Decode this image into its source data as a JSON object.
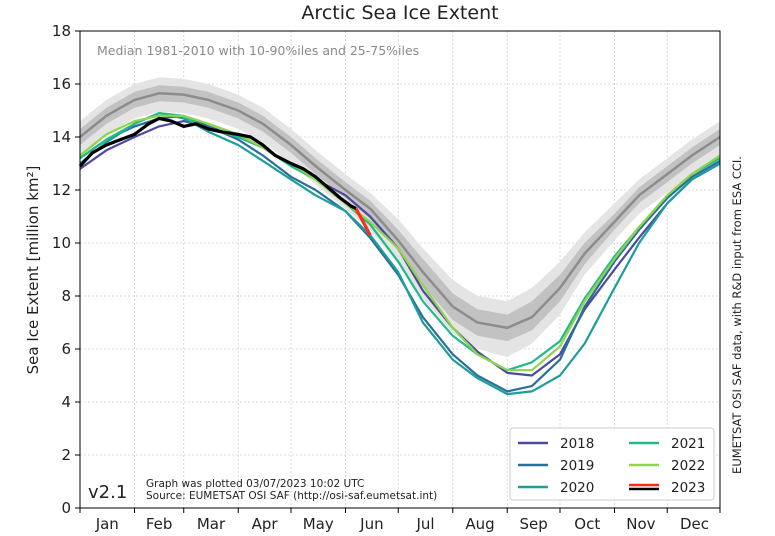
{
  "chart_data": {
    "type": "line",
    "title": "Arctic Sea Ice Extent",
    "subtitle": "Median 1981-2010 with 10-90%iles and 25-75%iles",
    "ylabel": "Sea Ice Extent [million km²]",
    "xlabel": "",
    "ylim": [
      0,
      18
    ],
    "yticks": [
      0,
      2,
      4,
      6,
      8,
      10,
      12,
      14,
      16,
      18
    ],
    "x_unit": "day of year",
    "xlim": [
      1,
      365
    ],
    "months": [
      "Jan",
      "Feb",
      "Mar",
      "Apr",
      "May",
      "Jun",
      "Jul",
      "Aug",
      "Sep",
      "Oct",
      "Nov",
      "Dec"
    ],
    "grid": true,
    "legend_position": "lower-right",
    "version": "v2.1",
    "footnote_lines": [
      "Graph was plotted 03/07/2023 10:02 UTC",
      "Source: EUMETSAT OSI SAF (http://osi-saf.eumetsat.int)"
    ],
    "side_note": "EUMETSAT OSI SAF data, with R&D input from ESA CCI.",
    "median": {
      "x": [
        1,
        16,
        32,
        46,
        60,
        74,
        91,
        105,
        121,
        135,
        152,
        166,
        182,
        196,
        213,
        227,
        244,
        258,
        274,
        288,
        305,
        319,
        335,
        349,
        365
      ],
      "values": [
        14.0,
        14.8,
        15.4,
        15.65,
        15.6,
        15.4,
        15.0,
        14.5,
        13.7,
        12.9,
        12.0,
        11.3,
        10.1,
        8.9,
        7.6,
        7.0,
        6.8,
        7.2,
        8.3,
        9.6,
        10.8,
        11.8,
        12.6,
        13.3,
        14.0
      ],
      "p25": [
        13.7,
        14.5,
        15.1,
        15.35,
        15.3,
        15.1,
        14.7,
        14.2,
        13.4,
        12.6,
        11.7,
        10.9,
        9.7,
        8.4,
        7.1,
        6.5,
        6.3,
        6.7,
        7.8,
        9.2,
        10.5,
        11.5,
        12.3,
        13.0,
        13.7
      ],
      "p75": [
        14.3,
        15.1,
        15.7,
        15.95,
        15.9,
        15.7,
        15.3,
        14.8,
        14.0,
        13.2,
        12.3,
        11.6,
        10.5,
        9.4,
        8.1,
        7.5,
        7.3,
        7.8,
        8.8,
        10.0,
        11.1,
        12.1,
        12.9,
        13.6,
        14.3
      ],
      "p10": [
        13.3,
        14.1,
        14.7,
        14.95,
        14.9,
        14.7,
        14.3,
        13.8,
        13.0,
        12.2,
        11.3,
        10.5,
        9.2,
        7.9,
        6.6,
        6.0,
        5.7,
        6.2,
        7.3,
        8.8,
        10.1,
        11.1,
        11.9,
        12.6,
        13.3
      ],
      "p90": [
        14.6,
        15.4,
        16.0,
        16.25,
        16.2,
        16.0,
        15.6,
        15.1,
        14.3,
        13.5,
        12.6,
        11.9,
        10.9,
        9.8,
        8.6,
        8.0,
        7.8,
        8.3,
        9.3,
        10.4,
        11.5,
        12.4,
        13.2,
        13.9,
        14.6
      ]
    },
    "series": [
      {
        "name": "2018",
        "color": "#4b4aa0",
        "x": [
          1,
          16,
          32,
          46,
          60,
          74,
          91,
          105,
          121,
          135,
          152,
          166,
          182,
          196,
          213,
          227,
          244,
          258,
          274,
          288,
          305,
          319,
          335,
          349,
          365
        ],
        "values": [
          12.8,
          13.5,
          14.0,
          14.4,
          14.6,
          14.4,
          14.0,
          13.6,
          13.0,
          12.4,
          11.8,
          11.0,
          9.8,
          8.2,
          6.8,
          5.9,
          5.1,
          5.0,
          5.8,
          7.5,
          9.0,
          10.2,
          11.5,
          12.4,
          13.0
        ]
      },
      {
        "name": "2019",
        "color": "#2a6f9b",
        "x": [
          1,
          16,
          32,
          46,
          60,
          74,
          91,
          105,
          121,
          135,
          152,
          166,
          182,
          196,
          213,
          227,
          244,
          258,
          274,
          288,
          305,
          319,
          335,
          349,
          365
        ],
        "values": [
          13.2,
          13.9,
          14.4,
          14.7,
          14.8,
          14.4,
          13.9,
          13.3,
          12.5,
          12.0,
          11.2,
          10.2,
          8.8,
          7.2,
          5.8,
          5.0,
          4.4,
          4.6,
          5.6,
          7.6,
          9.3,
          10.5,
          11.7,
          12.5,
          13.1
        ]
      },
      {
        "name": "2020",
        "color": "#1e9e9a",
        "x": [
          1,
          16,
          32,
          46,
          60,
          74,
          91,
          105,
          121,
          135,
          152,
          166,
          182,
          196,
          213,
          227,
          244,
          258,
          274,
          288,
          305,
          319,
          335,
          349,
          365
        ],
        "values": [
          13.0,
          13.8,
          14.5,
          14.9,
          14.7,
          14.2,
          13.7,
          13.1,
          12.4,
          11.8,
          11.2,
          10.3,
          8.9,
          7.0,
          5.6,
          4.9,
          4.3,
          4.4,
          5.0,
          6.2,
          8.3,
          10.0,
          11.5,
          12.4,
          13.0
        ]
      },
      {
        "name": "2021",
        "color": "#22b98a",
        "x": [
          1,
          16,
          32,
          46,
          60,
          74,
          91,
          105,
          121,
          135,
          152,
          166,
          182,
          196,
          213,
          227,
          244,
          258,
          274,
          288,
          305,
          319,
          335,
          349,
          365
        ],
        "values": [
          13.2,
          13.9,
          14.5,
          14.9,
          14.8,
          14.3,
          14.0,
          13.6,
          12.9,
          12.4,
          11.5,
          10.7,
          9.3,
          7.8,
          6.5,
          5.8,
          5.2,
          5.5,
          6.3,
          7.9,
          9.5,
          10.6,
          11.8,
          12.6,
          13.2
        ]
      },
      {
        "name": "2022",
        "color": "#8fd44a",
        "x": [
          1,
          16,
          32,
          46,
          60,
          74,
          91,
          105,
          121,
          135,
          152,
          166,
          182,
          196,
          213,
          227,
          244,
          258,
          274,
          288,
          305,
          319,
          335,
          349,
          365
        ],
        "values": [
          13.3,
          14.1,
          14.6,
          14.8,
          14.8,
          14.5,
          14.1,
          13.6,
          13.0,
          12.4,
          11.5,
          10.8,
          9.8,
          8.4,
          6.8,
          5.8,
          5.2,
          5.2,
          6.1,
          7.8,
          9.4,
          10.6,
          11.8,
          12.6,
          13.3
        ]
      },
      {
        "name": "2023",
        "color": "#000000",
        "highlight_color": "#ff2a1a",
        "highlight_from_x": 158,
        "x": [
          1,
          8,
          16,
          24,
          32,
          40,
          46,
          53,
          60,
          67,
          74,
          81,
          91,
          98,
          105,
          112,
          121,
          128,
          135,
          142,
          149,
          155,
          158,
          162,
          166
        ],
        "values": [
          12.9,
          13.4,
          13.7,
          13.9,
          14.1,
          14.5,
          14.7,
          14.6,
          14.4,
          14.5,
          14.3,
          14.2,
          14.1,
          14.0,
          13.7,
          13.3,
          13.0,
          12.8,
          12.5,
          12.1,
          11.7,
          11.4,
          11.3,
          10.8,
          10.3
        ]
      }
    ]
  }
}
